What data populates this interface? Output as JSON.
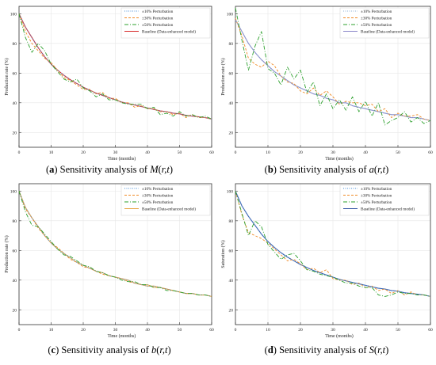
{
  "captions": [
    {
      "letter": "a",
      "text": "Sensitivity analysis of ",
      "func": "M",
      "args": "r,t"
    },
    {
      "letter": "b",
      "text": "Sensitivity analysis of ",
      "func": "a",
      "args": "r,t"
    },
    {
      "letter": "c",
      "text": "Sensitivity analysis of ",
      "func": "b",
      "args": "r,t"
    },
    {
      "letter": "d",
      "text": "Sensitivity analysis of ",
      "func": "S",
      "args": "r,t"
    }
  ],
  "chart_data": [
    {
      "type": "line",
      "title": "",
      "xlabel": "Time (months)",
      "ylabel": "Production rate (%)",
      "xlim": [
        0,
        60
      ],
      "ylim": [
        10,
        105
      ],
      "xticks": [
        "0",
        "10",
        "20",
        "30",
        "40",
        "50",
        "60"
      ],
      "yticks": [
        "20",
        "40",
        "60",
        "80",
        "100"
      ],
      "grid": true,
      "legend": "top-right",
      "x": [
        0,
        2,
        4,
        6,
        8,
        10,
        12,
        14,
        16,
        18,
        20,
        22,
        24,
        26,
        28,
        30,
        32,
        34,
        36,
        38,
        40,
        42,
        44,
        46,
        48,
        50,
        52,
        54,
        56,
        58,
        60
      ],
      "series": [
        {
          "name": "±10% Perturbation",
          "color": "#4a90d9",
          "dash": "1,1.5",
          "values": [
            100,
            91,
            84,
            77,
            71,
            66,
            62,
            58.5,
            55.5,
            53,
            50.5,
            48.5,
            46.5,
            45,
            43.5,
            42,
            40.5,
            39.5,
            38.5,
            37.5,
            36.5,
            35.5,
            34.5,
            34,
            33,
            32.5,
            31.5,
            31,
            30.5,
            30,
            29
          ]
        },
        {
          "name": "±30% Perturbation",
          "color": "#f08a24",
          "dash": "3,2",
          "values": [
            100,
            88,
            80,
            75,
            70,
            67,
            62,
            57,
            55,
            52,
            49,
            49,
            46,
            47,
            43,
            43,
            40,
            40,
            37,
            38,
            36,
            36,
            34,
            34,
            32,
            33,
            30,
            32,
            30,
            30,
            29
          ]
        },
        {
          "name": "±50% Perturbation",
          "color": "#2ca02c",
          "dash": "5,2,1,2",
          "values": [
            100,
            84,
            74,
            80,
            75,
            66,
            61,
            56,
            54,
            56,
            50,
            48,
            44,
            46,
            42,
            42,
            40,
            39,
            39,
            39,
            36,
            37,
            32,
            33,
            31,
            34,
            31,
            32,
            30,
            31,
            29
          ]
        },
        {
          "name": "Baseline (Data-enhanced model)",
          "color": "#d62728",
          "dash": "",
          "values": [
            100,
            91,
            84,
            77,
            71,
            66,
            62,
            58.5,
            55.5,
            53,
            50.5,
            48.5,
            46.5,
            45,
            43.5,
            42,
            40.5,
            39.5,
            38.5,
            37.5,
            36.5,
            35.5,
            34.5,
            34,
            33,
            32.5,
            31.5,
            31,
            30.5,
            30,
            29
          ]
        }
      ]
    },
    {
      "type": "line",
      "title": "",
      "xlabel": "Time (months)",
      "ylabel": "Production rate (%)",
      "xlim": [
        0,
        60
      ],
      "ylim": [
        10,
        105
      ],
      "xticks": [
        "0",
        "10",
        "20",
        "30",
        "40",
        "50",
        "60"
      ],
      "yticks": [
        "20",
        "40",
        "60",
        "80",
        "100"
      ],
      "grid": true,
      "legend": "top-right",
      "x": [
        0,
        2,
        4,
        6,
        8,
        10,
        12,
        14,
        16,
        18,
        20,
        22,
        24,
        26,
        28,
        30,
        32,
        34,
        36,
        38,
        40,
        42,
        44,
        46,
        48,
        50,
        52,
        54,
        56,
        58,
        60
      ],
      "series": [
        {
          "name": "±10% Perturbation",
          "color": "#8fb0d6",
          "dash": "1,1.5",
          "values": [
            96,
            88,
            80,
            74,
            69,
            65,
            61,
            58,
            55,
            52,
            50,
            48,
            46,
            45,
            43,
            42,
            40,
            40,
            38,
            37,
            36,
            35,
            34,
            33,
            32,
            32,
            31,
            30,
            30,
            29,
            28
          ]
        },
        {
          "name": "±30% Perturbation",
          "color": "#f08a24",
          "dash": "3,2",
          "values": [
            97,
            85,
            70,
            66,
            64,
            68,
            65,
            58,
            54,
            53,
            48,
            46,
            50,
            45,
            48,
            44,
            39,
            41,
            40,
            40,
            38,
            39,
            34,
            36,
            30,
            33,
            31,
            31,
            32,
            29,
            28
          ]
        },
        {
          "name": "±50% Perturbation",
          "color": "#2ca02c",
          "dash": "5,2,1,2",
          "values": [
            104,
            82,
            62,
            78,
            88,
            63,
            60,
            52,
            64,
            56,
            62,
            47,
            54,
            38,
            46,
            36,
            42,
            35,
            44,
            34,
            41,
            31,
            40,
            25,
            28,
            30,
            34,
            27,
            30,
            26,
            28
          ]
        },
        {
          "name": "Baseline (Data-enhanced model)",
          "color": "#8a86c8",
          "dash": "",
          "values": [
            96,
            88,
            80,
            74,
            69,
            65,
            61,
            58,
            55,
            52,
            50,
            48,
            46,
            45,
            43,
            42,
            40,
            40,
            38,
            37,
            36,
            35,
            34,
            33,
            32,
            32,
            31,
            30,
            30,
            29,
            28
          ]
        }
      ]
    },
    {
      "type": "line",
      "title": "",
      "xlabel": "Time (months)",
      "ylabel": "Production rate (%)",
      "xlim": [
        0,
        60
      ],
      "ylim": [
        10,
        105
      ],
      "xticks": [
        "0",
        "10",
        "20",
        "30",
        "40",
        "50",
        "60"
      ],
      "yticks": [
        "20",
        "40",
        "60",
        "80",
        "100"
      ],
      "grid": true,
      "legend": "top-right",
      "x": [
        0,
        2,
        4,
        6,
        8,
        10,
        12,
        14,
        16,
        18,
        20,
        22,
        24,
        26,
        28,
        30,
        32,
        34,
        36,
        38,
        40,
        42,
        44,
        46,
        48,
        50,
        52,
        54,
        56,
        58,
        60
      ],
      "series": [
        {
          "name": "±10% Perturbation",
          "color": "#4a90d9",
          "dash": "1,1.5",
          "values": [
            100,
            89,
            82,
            76,
            70,
            65,
            61,
            58,
            55,
            52,
            50,
            48,
            46,
            45,
            43,
            42,
            41,
            40,
            38,
            37,
            36,
            36,
            35,
            34,
            33,
            32,
            31,
            31,
            30,
            30,
            29
          ]
        },
        {
          "name": "±30% Perturbation",
          "color": "#f08a24",
          "dash": "3,2",
          "values": [
            100,
            88,
            82,
            75,
            70,
            65,
            62,
            58,
            54,
            52,
            49,
            48,
            46,
            44,
            43,
            42,
            41,
            39,
            38,
            37,
            37,
            35,
            35,
            34,
            33,
            32,
            31,
            31,
            30,
            30,
            29
          ]
        },
        {
          "name": "±50% Perturbation",
          "color": "#2ca02c",
          "dash": "5,2,1,2",
          "values": [
            100,
            86,
            77,
            76,
            71,
            66,
            61,
            57,
            56,
            53,
            50,
            49,
            46,
            45,
            43,
            42,
            40,
            39,
            39,
            37,
            37,
            35,
            35,
            33,
            33,
            32,
            31,
            31,
            30,
            30,
            29
          ]
        },
        {
          "name": "Baseline (Data-enhanced model)",
          "color": "#e8a84a",
          "dash": "",
          "values": [
            100,
            89,
            82,
            76,
            70,
            65,
            61,
            58,
            55,
            52,
            50,
            48,
            46,
            45,
            43,
            42,
            41,
            40,
            38,
            37,
            36,
            36,
            35,
            34,
            33,
            32,
            31,
            31,
            30,
            30,
            29
          ]
        }
      ]
    },
    {
      "type": "line",
      "title": "",
      "xlabel": "Time (months)",
      "ylabel": "Saturation (%)",
      "xlim": [
        0,
        60
      ],
      "ylim": [
        10,
        105
      ],
      "xticks": [
        "0",
        "10",
        "20",
        "30",
        "40",
        "50",
        "60"
      ],
      "yticks": [
        "20",
        "40",
        "60",
        "80",
        "100"
      ],
      "grid": true,
      "legend": "top-right",
      "x": [
        0,
        2,
        4,
        6,
        8,
        10,
        12,
        14,
        16,
        18,
        20,
        22,
        24,
        26,
        28,
        30,
        32,
        34,
        36,
        38,
        40,
        42,
        44,
        46,
        48,
        50,
        52,
        54,
        56,
        58,
        60
      ],
      "series": [
        {
          "name": "±10% Perturbation",
          "color": "#4a90d9",
          "dash": "1,1.5",
          "values": [
            100,
            90,
            83,
            77,
            71,
            66,
            62,
            58.5,
            55.5,
            53,
            50.5,
            48.5,
            46.5,
            45,
            43.5,
            42,
            40.5,
            39.5,
            38.5,
            37.5,
            36.5,
            35.5,
            34.5,
            34,
            33,
            32.5,
            31.5,
            31,
            30.5,
            30,
            29
          ]
        },
        {
          "name": "±30% Perturbation",
          "color": "#f08a24",
          "dash": "3,2",
          "values": [
            100,
            84,
            72,
            70,
            68,
            65,
            61,
            57,
            53,
            54,
            51,
            47,
            48,
            45,
            47,
            41,
            40,
            40,
            37,
            38,
            35,
            36,
            33,
            34,
            31,
            33,
            30,
            32,
            30,
            30,
            29
          ]
        },
        {
          "name": "±50% Perturbation",
          "color": "#2ca02c",
          "dash": "5,2,1,2",
          "values": [
            100,
            85,
            70,
            80,
            76,
            64,
            59,
            54,
            57,
            58,
            53,
            47,
            46,
            44,
            43,
            42,
            40,
            38,
            38,
            36,
            35,
            35,
            30,
            29,
            30,
            32,
            31,
            31,
            30,
            30,
            29
          ]
        },
        {
          "name": "Baseline (Data-enhanced model)",
          "color": "#3a5aa8",
          "dash": "",
          "values": [
            100,
            90,
            83,
            77,
            71,
            66,
            62,
            58.5,
            55.5,
            53,
            50.5,
            48.5,
            46.5,
            45,
            43.5,
            42,
            40.5,
            39.5,
            38.5,
            37.5,
            36.5,
            35.5,
            34.5,
            34,
            33,
            32.5,
            31.5,
            31,
            30.5,
            30,
            29
          ]
        }
      ]
    }
  ]
}
